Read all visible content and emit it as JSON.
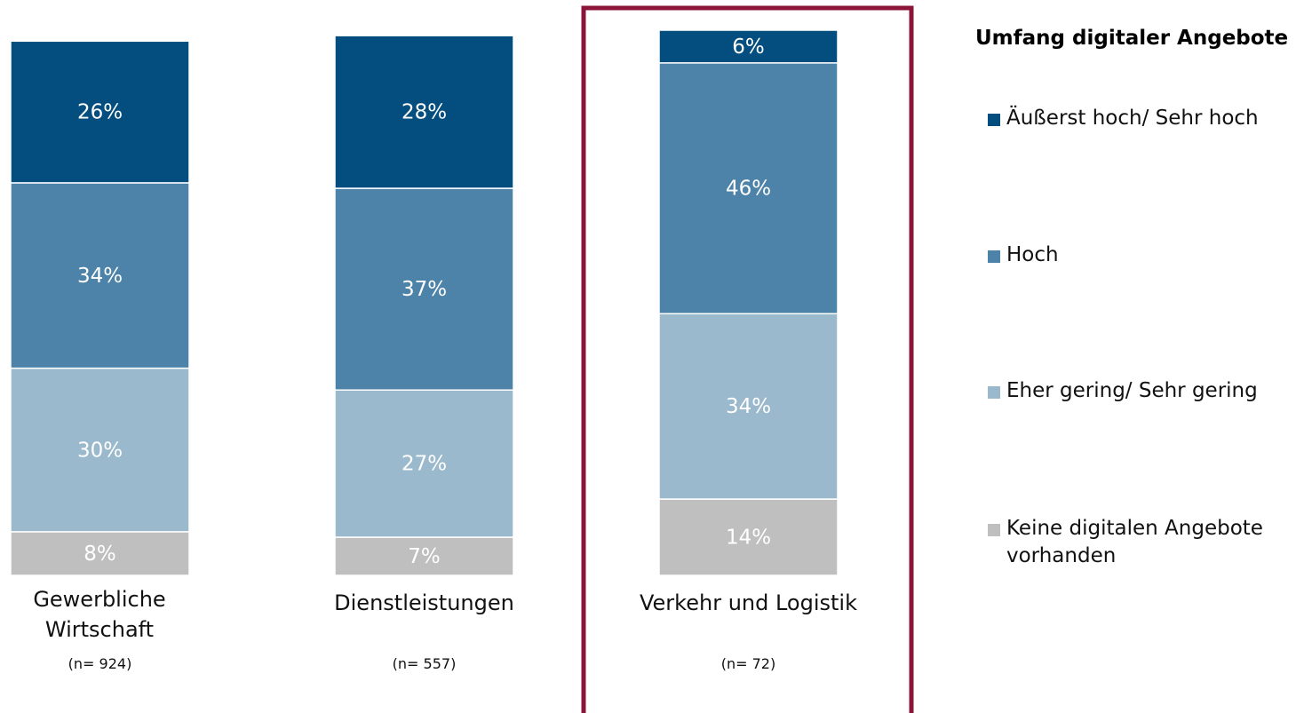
{
  "chart_data": {
    "type": "stacked_bar",
    "categories": [
      "Gewerbliche Wirtschaft",
      "Dienstleistungen",
      "Verkehr und Logistik"
    ],
    "category_notes": [
      "(n= 924)",
      "(n= 557)",
      "(n= 72)"
    ],
    "highlighted_category": "Verkehr und Logistik",
    "legend_title": "Umfang digitaler Angebote",
    "legend": "right",
    "ylim": [
      0,
      100
    ],
    "series": [
      {
        "name": "Keine digitalen Angebote vorhanden",
        "color": "#bfbfbf",
        "values": [
          8,
          7,
          14
        ],
        "value_labels": [
          "8%",
          "7%",
          "14%"
        ]
      },
      {
        "name": "Eher gering/ Sehr gering",
        "color": "#9ab9cc",
        "values": [
          30,
          27,
          34
        ],
        "value_labels": [
          "30%",
          "27%",
          "34%"
        ]
      },
      {
        "name": "Hoch",
        "color": "#4d83a8",
        "values": [
          34,
          37,
          46
        ],
        "value_labels": [
          "34%",
          "37%",
          "46%"
        ]
      },
      {
        "name": "Äußerst hoch/ Sehr hoch",
        "color": "#034e7e",
        "values": [
          26,
          28,
          6
        ],
        "value_labels": [
          "26%",
          "28%",
          "6%"
        ]
      }
    ]
  }
}
